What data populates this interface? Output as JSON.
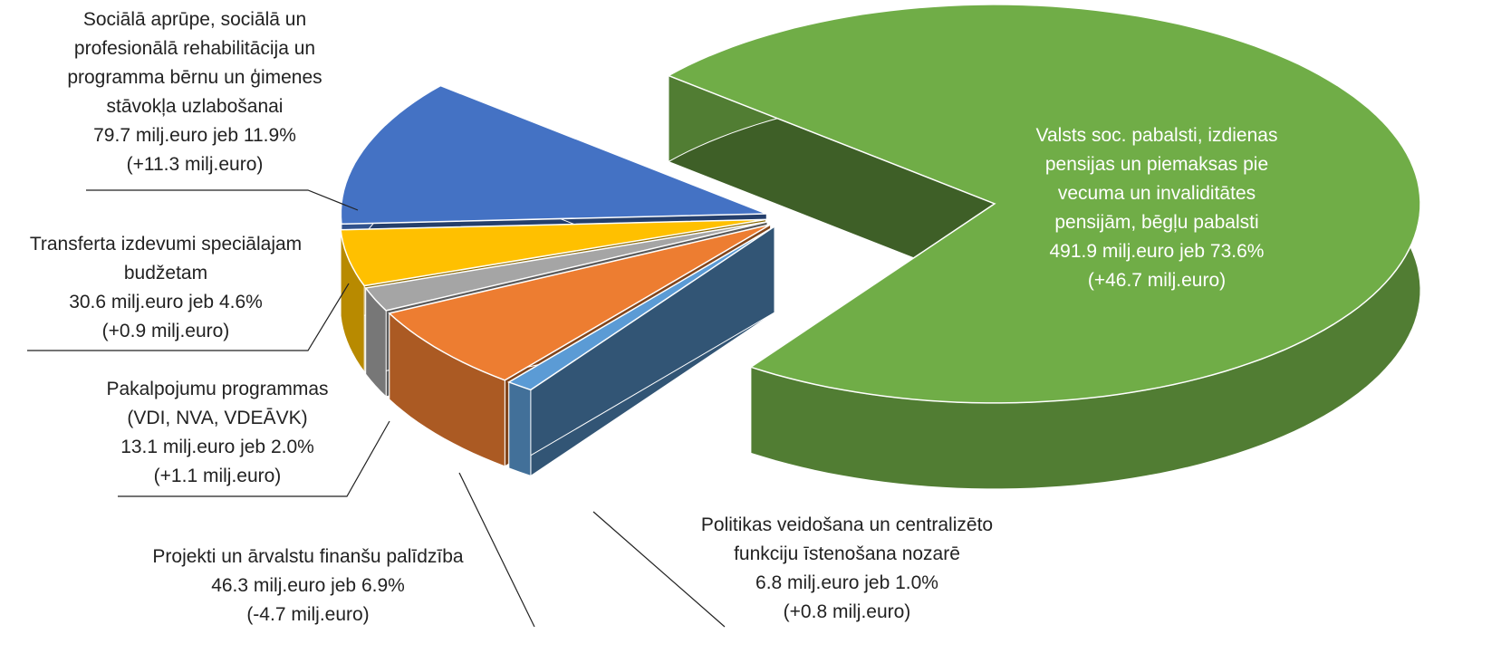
{
  "chart_data": {
    "type": "pie",
    "categories": [
      [
        "Valsts soc. pabalsti, izdienas",
        "pensijas un piemaksas pie",
        "vecuma un invaliditātes",
        "pensijām, bēgļu pabalsti"
      ],
      [
        "Politikas veidošana un centralizēto",
        "funkciju īstenošana nozarē"
      ],
      [
        "Projekti un ārvalstu finanšu palīdzība"
      ],
      [
        "Pakalpojumu programmas",
        "(VDI, NVA, VDEĀVK)"
      ],
      [
        "Transferta izdevumi speciālajam",
        "budžetam"
      ],
      [
        "Sociālā aprūpe, sociālā un",
        "profesionālā rehabilitācija un",
        "programma bērnu un ģimenes",
        "stāvokļa uzlabošanai"
      ]
    ],
    "values": [
      491.9,
      6.8,
      46.3,
      13.1,
      30.6,
      79.7
    ],
    "value_labels": [
      "491.9 milj.euro jeb 73.6%",
      "6.8 milj.euro jeb 1.0%",
      "46.3 milj.euro jeb 6.9%",
      "13.1 milj.euro jeb 2.0%",
      "30.6 milj.euro jeb 4.6%",
      "79.7 milj.euro jeb 11.9%"
    ],
    "changes": [
      46.7,
      0.8,
      -4.7,
      1.1,
      0.9,
      11.3
    ],
    "change_labels": [
      "(+46.7 milj.euro)",
      "(+0.8 milj.euro)",
      "(-4.7 milj.euro)",
      "(+1.1 milj.euro)",
      "(+0.9 milj.euro)",
      "(+11.3 milj.euro)"
    ],
    "colors": [
      "#70ad47",
      "#5b9bd5",
      "#ed7d31",
      "#a5a5a5",
      "#ffc000",
      "#4472c4"
    ]
  }
}
